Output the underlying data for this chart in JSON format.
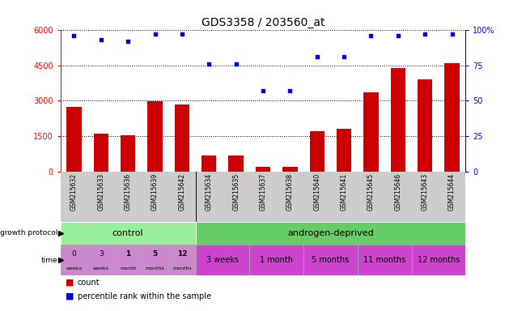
{
  "title": "GDS3358 / 203560_at",
  "samples": [
    "GSM215632",
    "GSM215633",
    "GSM215636",
    "GSM215639",
    "GSM215642",
    "GSM215634",
    "GSM215635",
    "GSM215637",
    "GSM215638",
    "GSM215640",
    "GSM215641",
    "GSM215645",
    "GSM215646",
    "GSM215643",
    "GSM215644"
  ],
  "counts": [
    2750,
    1600,
    1550,
    2980,
    2850,
    700,
    700,
    190,
    190,
    1700,
    1800,
    3350,
    4400,
    3900,
    4600
  ],
  "percentiles": [
    96,
    93,
    92,
    97,
    97,
    76,
    76,
    57,
    57,
    81,
    81,
    96,
    96,
    97,
    97
  ],
  "ylim_left": [
    0,
    6000
  ],
  "ylim_right": [
    0,
    100
  ],
  "yticks_left": [
    0,
    1500,
    3000,
    4500,
    6000
  ],
  "yticks_right": [
    0,
    25,
    50,
    75,
    100
  ],
  "bar_color": "#cc0000",
  "dot_color": "#0000cc",
  "grid_color": "#000000",
  "label_bg": "#cccccc",
  "protocol_control_color": "#99ee99",
  "protocol_androgen_color": "#66cc66",
  "time_control_color": "#cc88cc",
  "time_androgen_color": "#cc44cc",
  "bg_color": "#ffffff"
}
